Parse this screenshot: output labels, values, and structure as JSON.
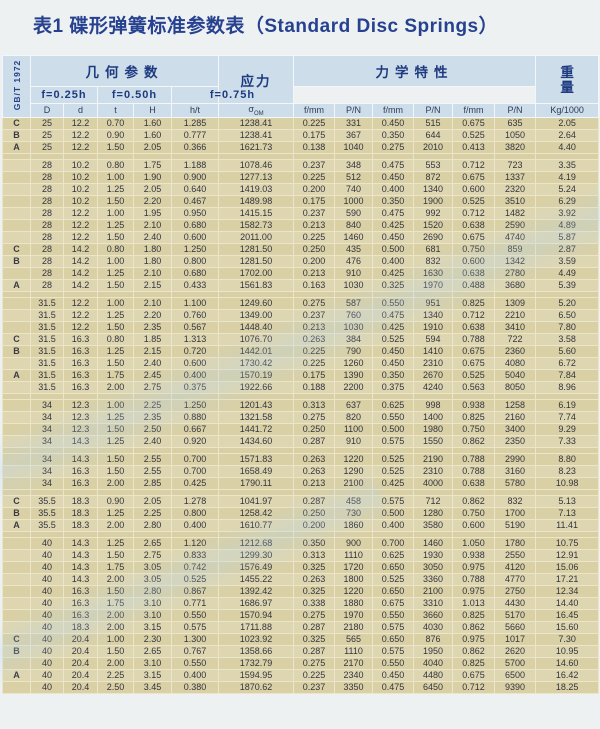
{
  "title": "表1  碟形弹簧标准参数表（Standard Disc Springs）",
  "standard_label": "GB/T 1972",
  "header": {
    "geometry": "几何参数",
    "stress": "应力",
    "mechanical": "力学特性",
    "weight_char1": "重",
    "weight_char2": "量",
    "stress_symbol": "σ",
    "stress_sub": "OM",
    "deflections": [
      "f=0.25h",
      "f=0.50h",
      "f=0.75h"
    ],
    "columns": [
      "D",
      "d",
      "t",
      "H",
      "h/t",
      "f/mm",
      "P/N",
      "f/mm",
      "P/N",
      "f/mm",
      "P/N",
      "Kg/1000"
    ]
  },
  "rows": [
    [
      "C",
      "25",
      "12.2",
      "0.70",
      "1.60",
      "1.285",
      "1238.41",
      "0.225",
      "331",
      "0.450",
      "515",
      "0.675",
      "635",
      "2.05"
    ],
    [
      "B",
      "25",
      "12.2",
      "0.90",
      "1.60",
      "0.777",
      "1238.41",
      "0.175",
      "367",
      "0.350",
      "644",
      "0.525",
      "1050",
      "2.64"
    ],
    [
      "A",
      "25",
      "12.2",
      "1.50",
      "2.05",
      "0.366",
      "1621.73",
      "0.138",
      "1040",
      "0.275",
      "2010",
      "0.413",
      "3820",
      "4.40"
    ],
    [],
    [
      "",
      "28",
      "10.2",
      "0.80",
      "1.75",
      "1.188",
      "1078.46",
      "0.237",
      "348",
      "0.475",
      "553",
      "0.712",
      "723",
      "3.35"
    ],
    [
      "",
      "28",
      "10.2",
      "1.00",
      "1.90",
      "0.900",
      "1277.13",
      "0.225",
      "512",
      "0.450",
      "872",
      "0.675",
      "1337",
      "4.19"
    ],
    [
      "",
      "28",
      "10.2",
      "1.25",
      "2.05",
      "0.640",
      "1419.03",
      "0.200",
      "740",
      "0.400",
      "1340",
      "0.600",
      "2320",
      "5.24"
    ],
    [
      "",
      "28",
      "10.2",
      "1.50",
      "2.20",
      "0.467",
      "1489.98",
      "0.175",
      "1000",
      "0.350",
      "1900",
      "0.525",
      "3510",
      "6.29"
    ],
    [
      "",
      "28",
      "12.2",
      "1.00",
      "1.95",
      "0.950",
      "1415.15",
      "0.237",
      "590",
      "0.475",
      "992",
      "0.712",
      "1482",
      "3.92"
    ],
    [
      "",
      "28",
      "12.2",
      "1.25",
      "2.10",
      "0.680",
      "1582.73",
      "0.213",
      "840",
      "0.425",
      "1520",
      "0.638",
      "2590",
      "4.89"
    ],
    [
      "",
      "28",
      "12.2",
      "1.50",
      "2.40",
      "0.600",
      "2011.00",
      "0.225",
      "1460",
      "0.450",
      "2690",
      "0.675",
      "4740",
      "5.87"
    ],
    [
      "C",
      "28",
      "14.2",
      "0.80",
      "1.80",
      "1.250",
      "1281.50",
      "0.250",
      "435",
      "0.500",
      "681",
      "0.750",
      "859",
      "2.87"
    ],
    [
      "B",
      "28",
      "14.2",
      "1.00",
      "1.80",
      "0.800",
      "1281.50",
      "0.200",
      "476",
      "0.400",
      "832",
      "0.600",
      "1342",
      "3.59"
    ],
    [
      "",
      "28",
      "14.2",
      "1.25",
      "2.10",
      "0.680",
      "1702.00",
      "0.213",
      "910",
      "0.425",
      "1630",
      "0.638",
      "2780",
      "4.49"
    ],
    [
      "A",
      "28",
      "14.2",
      "1.50",
      "2.15",
      "0.433",
      "1561.83",
      "0.163",
      "1030",
      "0.325",
      "1970",
      "0.488",
      "3680",
      "5.39"
    ],
    [],
    [
      "",
      "31.5",
      "12.2",
      "1.00",
      "2.10",
      "1.100",
      "1249.60",
      "0.275",
      "587",
      "0.550",
      "951",
      "0.825",
      "1309",
      "5.20"
    ],
    [
      "",
      "31.5",
      "12.2",
      "1.25",
      "2.20",
      "0.760",
      "1349.00",
      "0.237",
      "760",
      "0.475",
      "1340",
      "0.712",
      "2210",
      "6.50"
    ],
    [
      "",
      "31.5",
      "12.2",
      "1.50",
      "2.35",
      "0.567",
      "1448.40",
      "0.213",
      "1030",
      "0.425",
      "1910",
      "0.638",
      "3410",
      "7.80"
    ],
    [
      "C",
      "31.5",
      "16.3",
      "0.80",
      "1.85",
      "1.313",
      "1076.70",
      "0.263",
      "384",
      "0.525",
      "594",
      "0.788",
      "722",
      "3.58"
    ],
    [
      "B",
      "31.5",
      "16.3",
      "1.25",
      "2.15",
      "0.720",
      "1442.01",
      "0.225",
      "790",
      "0.450",
      "1410",
      "0.675",
      "2360",
      "5.60"
    ],
    [
      "",
      "31.5",
      "16.3",
      "1.50",
      "2.40",
      "0.600",
      "1730.42",
      "0.225",
      "1260",
      "0.450",
      "2310",
      "0.675",
      "4080",
      "6.72"
    ],
    [
      "A",
      "31.5",
      "16.3",
      "1.75",
      "2.45",
      "0.400",
      "1570.19",
      "0.175",
      "1390",
      "0.350",
      "2670",
      "0.525",
      "5040",
      "7.84"
    ],
    [
      "",
      "31.5",
      "16.3",
      "2.00",
      "2.75",
      "0.375",
      "1922.66",
      "0.188",
      "2200",
      "0.375",
      "4240",
      "0.563",
      "8050",
      "8.96"
    ],
    [],
    [
      "",
      "34",
      "12.3",
      "1.00",
      "2.25",
      "1.250",
      "1201.43",
      "0.313",
      "637",
      "0.625",
      "998",
      "0.938",
      "1258",
      "6.19"
    ],
    [
      "",
      "34",
      "12.3",
      "1.25",
      "2.35",
      "0.880",
      "1321.58",
      "0.275",
      "820",
      "0.550",
      "1400",
      "0.825",
      "2160",
      "7.74"
    ],
    [
      "",
      "34",
      "12.3",
      "1.50",
      "2.50",
      "0.667",
      "1441.72",
      "0.250",
      "1100",
      "0.500",
      "1980",
      "0.750",
      "3400",
      "9.29"
    ],
    [
      "",
      "34",
      "14.3",
      "1.25",
      "2.40",
      "0.920",
      "1434.60",
      "0.287",
      "910",
      "0.575",
      "1550",
      "0.862",
      "2350",
      "7.33"
    ],
    [],
    [
      "",
      "34",
      "14.3",
      "1.50",
      "2.55",
      "0.700",
      "1571.83",
      "0.263",
      "1220",
      "0.525",
      "2190",
      "0.788",
      "2990",
      "8.80"
    ],
    [
      "",
      "34",
      "16.3",
      "1.50",
      "2.55",
      "0.700",
      "1658.49",
      "0.263",
      "1290",
      "0.525",
      "2310",
      "0.788",
      "3160",
      "8.23"
    ],
    [
      "",
      "34",
      "16.3",
      "2.00",
      "2.85",
      "0.425",
      "1790.11",
      "0.213",
      "2100",
      "0.425",
      "4000",
      "0.638",
      "5780",
      "10.98"
    ],
    [],
    [
      "C",
      "35.5",
      "18.3",
      "0.90",
      "2.05",
      "1.278",
      "1041.97",
      "0.287",
      "458",
      "0.575",
      "712",
      "0.862",
      "832",
      "5.13"
    ],
    [
      "B",
      "35.5",
      "18.3",
      "1.25",
      "2.25",
      "0.800",
      "1258.42",
      "0.250",
      "730",
      "0.500",
      "1280",
      "0.750",
      "1700",
      "7.13"
    ],
    [
      "A",
      "35.5",
      "18.3",
      "2.00",
      "2.80",
      "0.400",
      "1610.77",
      "0.200",
      "1860",
      "0.400",
      "3580",
      "0.600",
      "5190",
      "11.41"
    ],
    [],
    [
      "",
      "40",
      "14.3",
      "1.25",
      "2.65",
      "1.120",
      "1212.68",
      "0.350",
      "900",
      "0.700",
      "1460",
      "1.050",
      "1780",
      "10.75"
    ],
    [
      "",
      "40",
      "14.3",
      "1.50",
      "2.75",
      "0.833",
      "1299.30",
      "0.313",
      "1110",
      "0.625",
      "1930",
      "0.938",
      "2550",
      "12.91"
    ],
    [
      "",
      "40",
      "14.3",
      "1.75",
      "3.05",
      "0.742",
      "1576.49",
      "0.325",
      "1720",
      "0.650",
      "3050",
      "0.975",
      "4120",
      "15.06"
    ],
    [
      "",
      "40",
      "14.3",
      "2.00",
      "3.05",
      "0.525",
      "1455.22",
      "0.263",
      "1800",
      "0.525",
      "3360",
      "0.788",
      "4770",
      "17.21"
    ],
    [
      "",
      "40",
      "16.3",
      "1.50",
      "2.80",
      "0.867",
      "1392.42",
      "0.325",
      "1220",
      "0.650",
      "2100",
      "0.975",
      "2750",
      "12.34"
    ],
    [
      "",
      "40",
      "16.3",
      "1.75",
      "3.10",
      "0.771",
      "1686.97",
      "0.338",
      "1880",
      "0.675",
      "3310",
      "1.013",
      "4430",
      "14.40"
    ],
    [
      "",
      "40",
      "16.3",
      "2.00",
      "3.10",
      "0.550",
      "1570.94",
      "0.275",
      "1970",
      "0.550",
      "3660",
      "0.825",
      "5170",
      "16.45"
    ],
    [
      "",
      "40",
      "18.3",
      "2.00",
      "3.15",
      "0.575",
      "1711.88",
      "0.287",
      "2180",
      "0.575",
      "4030",
      "0.862",
      "5660",
      "15.60"
    ],
    [
      "C",
      "40",
      "20.4",
      "1.00",
      "2.30",
      "1.300",
      "1023.92",
      "0.325",
      "565",
      "0.650",
      "876",
      "0.975",
      "1017",
      "7.30"
    ],
    [
      "B",
      "40",
      "20.4",
      "1.50",
      "2.65",
      "0.767",
      "1358.66",
      "0.287",
      "1110",
      "0.575",
      "1950",
      "0.862",
      "2620",
      "10.95"
    ],
    [
      "",
      "40",
      "20.4",
      "2.00",
      "3.10",
      "0.550",
      "1732.79",
      "0.275",
      "2170",
      "0.550",
      "4040",
      "0.825",
      "5700",
      "14.60"
    ],
    [
      "A",
      "40",
      "20.4",
      "2.25",
      "3.15",
      "0.400",
      "1594.95",
      "0.225",
      "2340",
      "0.450",
      "4480",
      "0.675",
      "6500",
      "16.42"
    ],
    [
      "",
      "40",
      "20.4",
      "2.50",
      "3.45",
      "0.380",
      "1870.62",
      "0.237",
      "3350",
      "0.475",
      "6450",
      "0.712",
      "9390",
      "18.25"
    ]
  ],
  "colors": {
    "title": "#26418f",
    "header_bg": "#cddde9",
    "body_bg": "#d9d0a6",
    "grid": "#ece5c8",
    "body_text": "#33343e"
  }
}
